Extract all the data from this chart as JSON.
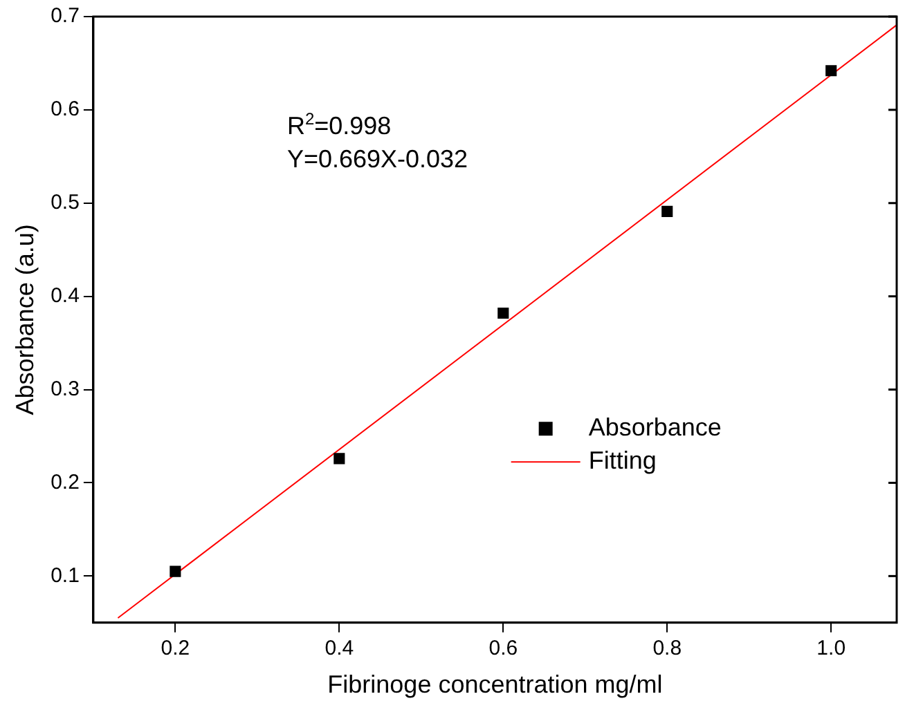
{
  "chart_data": {
    "type": "scatter",
    "xlabel": "Fibrinoge concentration mg/ml",
    "ylabel": "Absorbance (a.u)",
    "xlim": [
      0.1,
      1.08
    ],
    "xticks": [
      0.2,
      0.4,
      0.6,
      0.8,
      {
        "value": 1.0,
        "label": "1.0"
      }
    ],
    "ylim": [
      0.05,
      0.7
    ],
    "yticks": [
      0.1,
      0.2,
      0.3,
      0.4,
      0.5,
      0.6,
      0.7
    ],
    "series": [
      {
        "name": "Absorbance",
        "color": "#000000",
        "marker": "square",
        "x": [
          0.2,
          0.4,
          0.6,
          0.8,
          1.0
        ],
        "values": [
          0.105,
          0.226,
          0.382,
          0.491,
          0.642
        ]
      },
      {
        "name": "Fitting",
        "type": "line",
        "color": "#ff0000",
        "marker": "none",
        "x": [
          0.13,
          1.08
        ],
        "values": [
          0.055,
          0.691
        ]
      }
    ],
    "annotations": [
      "R$^{2}$=0.998",
      "Y=0.669X-0.032"
    ],
    "legend": "right",
    "grid": false
  }
}
